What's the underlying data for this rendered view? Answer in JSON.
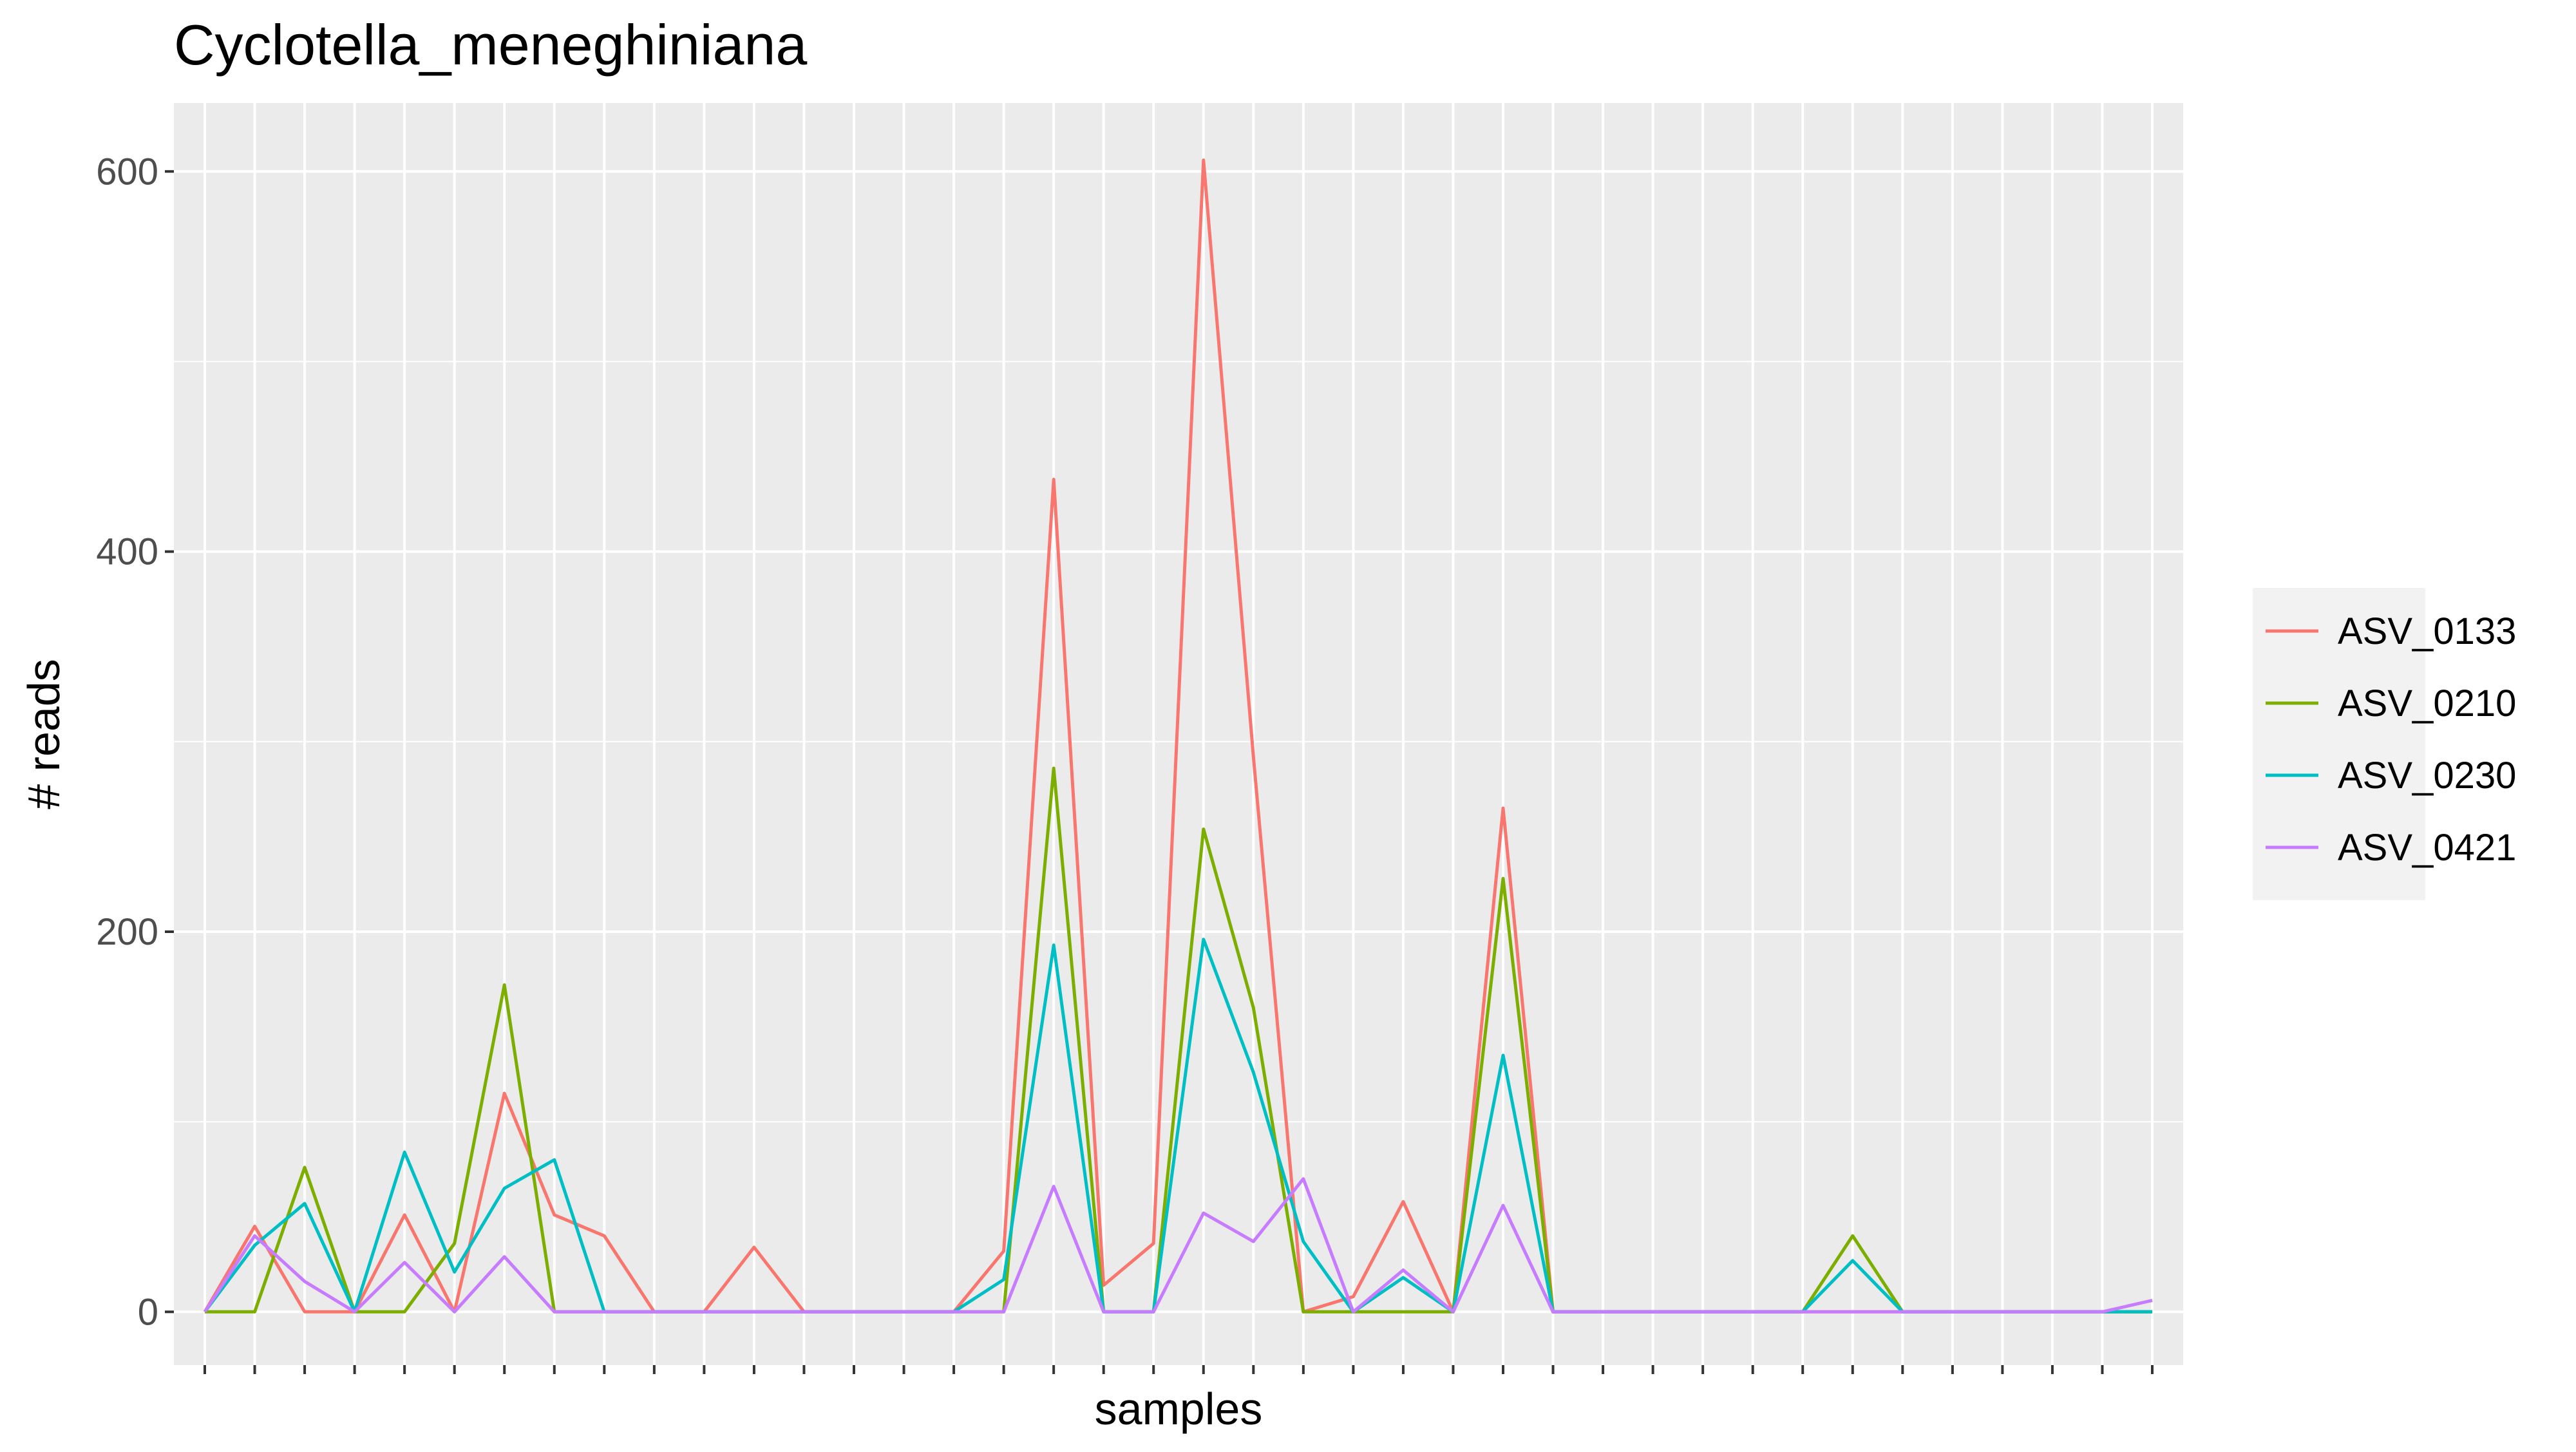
{
  "chart_data": {
    "type": "line",
    "title": "Cyclotella_meneghiniana",
    "xlabel": "samples",
    "ylabel": "# reads",
    "ylim": [
      -28,
      636
    ],
    "yticks": [
      0,
      200,
      400,
      600
    ],
    "grid": true,
    "legend_position": "right",
    "n_samples": 40,
    "series": [
      {
        "name": "ASV_0133",
        "color": "#F8766D",
        "values": [
          0,
          45,
          0,
          0,
          51,
          0,
          115,
          51,
          40,
          0,
          0,
          34,
          0,
          0,
          0,
          0,
          32,
          438,
          14,
          36,
          606,
          292,
          0,
          8,
          58,
          0,
          265,
          0,
          0,
          0,
          0,
          0,
          0,
          0,
          0,
          0,
          0,
          0,
          0,
          0
        ]
      },
      {
        "name": "ASV_0210",
        "color": "#7CAE00",
        "values": [
          0,
          0,
          76,
          0,
          0,
          36,
          172,
          0,
          0,
          0,
          0,
          0,
          0,
          0,
          0,
          0,
          0,
          286,
          0,
          0,
          254,
          160,
          0,
          0,
          0,
          0,
          228,
          0,
          0,
          0,
          0,
          0,
          0,
          40,
          0,
          0,
          0,
          0,
          0,
          0
        ]
      },
      {
        "name": "ASV_0230",
        "color": "#00BFC4",
        "values": [
          0,
          35,
          57,
          0,
          84,
          21,
          65,
          80,
          0,
          0,
          0,
          0,
          0,
          0,
          0,
          0,
          17,
          193,
          0,
          0,
          196,
          126,
          37,
          0,
          18,
          0,
          135,
          0,
          0,
          0,
          0,
          0,
          0,
          27,
          0,
          0,
          0,
          0,
          0,
          0
        ]
      },
      {
        "name": "ASV_0421",
        "color": "#C77CFF",
        "values": [
          0,
          40,
          16,
          0,
          26,
          0,
          29,
          0,
          0,
          0,
          0,
          0,
          0,
          0,
          0,
          0,
          0,
          66,
          0,
          0,
          52,
          37,
          70,
          0,
          22,
          0,
          56,
          0,
          0,
          0,
          0,
          0,
          0,
          0,
          0,
          0,
          0,
          0,
          0,
          6
        ]
      }
    ]
  }
}
